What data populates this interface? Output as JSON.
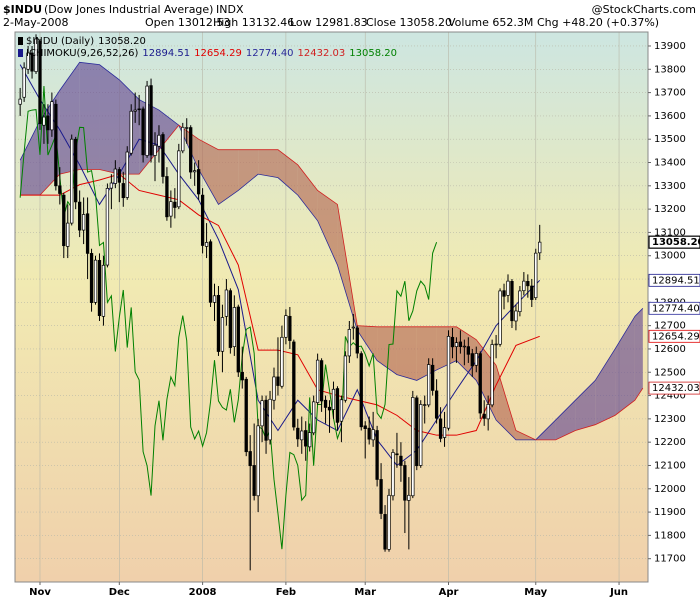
{
  "header": {
    "symbol": "$INDU",
    "name": "(Dow Jones Industrial Average)",
    "exchange": "INDX",
    "date": "2-May-2008",
    "stats": [
      "Open 13012.53",
      "High 13132.46",
      "Low 12981.83",
      "Close 13058.20",
      "Volume 652.3M",
      "Chg +48.20 (+0.37%)"
    ],
    "watermark": "@StockCharts.com"
  },
  "chart_data": {
    "type": "candlestick",
    "legend": "$INDU (Daily)",
    "indicator": "ICHIMOKU(9,26,52,26)",
    "xlim": [
      -1.3,
      158.3
    ],
    "xticks": [
      {
        "value": 5,
        "label": "Nov"
      },
      {
        "value": 25,
        "label": "Dec"
      },
      {
        "value": 46,
        "label": "2008"
      },
      {
        "value": 67,
        "label": "Feb"
      },
      {
        "value": 87,
        "label": "Mar"
      },
      {
        "value": 108,
        "label": "Apr"
      },
      {
        "value": 130,
        "label": "May"
      },
      {
        "value": 151,
        "label": "Jun"
      }
    ],
    "ylim": [
      11600,
      13960
    ],
    "yticks": [
      11700,
      11800,
      11900,
      12000,
      12100,
      12200,
      12300,
      12400,
      12500,
      12600,
      12700,
      12800,
      12900,
      13000,
      13100,
      13200,
      13300,
      13400,
      13500,
      13600,
      13700,
      13800,
      13900
    ],
    "grid": true,
    "candles": {
      "color": "#000000",
      "close_label": "13058.20",
      "lagging": {
        "color": "#008000",
        "shift": -26
      },
      "ohlc": [
        [
          13650,
          13720,
          13600,
          13672
        ],
        [
          13680,
          13830,
          13660,
          13806
        ],
        [
          13800,
          13900,
          13780,
          13870
        ],
        [
          13870,
          13900,
          13760,
          13792
        ],
        [
          13790,
          13950,
          13780,
          13930
        ],
        [
          13920,
          13930,
          13540,
          13567
        ],
        [
          13560,
          13650,
          13480,
          13595
        ],
        [
          13600,
          13650,
          13480,
          13540
        ],
        [
          13540,
          13700,
          13510,
          13661
        ],
        [
          13650,
          13670,
          13280,
          13300
        ],
        [
          13300,
          13380,
          13220,
          13267
        ],
        [
          13260,
          13270,
          12990,
          13043
        ],
        [
          13040,
          13220,
          12990,
          13140
        ],
        [
          13140,
          13520,
          13130,
          13500
        ],
        [
          13500,
          13510,
          13200,
          13231
        ],
        [
          13230,
          13280,
          13080,
          13110
        ],
        [
          13110,
          13250,
          13050,
          13177
        ],
        [
          13180,
          13250,
          12900,
          13010
        ],
        [
          13010,
          13030,
          12760,
          12799
        ],
        [
          12800,
          13000,
          12790,
          12981
        ],
        [
          12980,
          13010,
          12720,
          12743
        ],
        [
          12740,
          13000,
          12700,
          12959
        ],
        [
          12960,
          13310,
          12950,
          13289
        ],
        [
          13290,
          13350,
          13200,
          13312
        ],
        [
          13310,
          13410,
          13290,
          13372
        ],
        [
          13370,
          13380,
          13230,
          13315
        ],
        [
          13310,
          13360,
          13210,
          13249
        ],
        [
          13250,
          13470,
          13240,
          13445
        ],
        [
          13440,
          13650,
          13430,
          13620
        ],
        [
          13620,
          13700,
          13570,
          13625
        ],
        [
          13630,
          13690,
          13560,
          13627
        ],
        [
          13630,
          13640,
          13400,
          13433
        ],
        [
          13430,
          13750,
          13420,
          13728
        ],
        [
          13730,
          13760,
          13400,
          13432
        ],
        [
          13430,
          13530,
          13320,
          13474
        ],
        [
          13470,
          13560,
          13400,
          13517
        ],
        [
          13520,
          13530,
          13310,
          13340
        ],
        [
          13340,
          13380,
          13150,
          13167
        ],
        [
          13170,
          13280,
          13120,
          13232
        ],
        [
          13230,
          13290,
          13160,
          13207
        ],
        [
          13210,
          13480,
          13200,
          13450
        ],
        [
          13450,
          13570,
          13440,
          13551
        ],
        [
          13550,
          13590,
          13480,
          13550
        ],
        [
          13550,
          13560,
          13330,
          13359
        ],
        [
          13360,
          13400,
          13300,
          13365
        ],
        [
          13370,
          13410,
          13240,
          13265
        ],
        [
          13260,
          13290,
          13010,
          13044
        ],
        [
          13040,
          13140,
          12990,
          13057
        ],
        [
          13060,
          13070,
          12780,
          12800
        ],
        [
          12800,
          12880,
          12720,
          12828
        ],
        [
          12830,
          12870,
          12570,
          12589
        ],
        [
          12590,
          12790,
          12500,
          12735
        ],
        [
          12740,
          12900,
          12700,
          12853
        ],
        [
          12850,
          12860,
          12580,
          12606
        ],
        [
          12610,
          12830,
          12570,
          12778
        ],
        [
          12780,
          12790,
          12480,
          12501
        ],
        [
          12500,
          12610,
          12430,
          12467
        ],
        [
          12470,
          12480,
          12140,
          12159
        ],
        [
          12160,
          12230,
          11650,
          12099
        ],
        [
          12100,
          12280,
          11950,
          11971
        ],
        [
          11970,
          12300,
          11900,
          12270
        ],
        [
          12270,
          12400,
          12200,
          12378
        ],
        [
          12380,
          12400,
          12150,
          12208
        ],
        [
          12210,
          12420,
          12190,
          12384
        ],
        [
          12380,
          12520,
          12340,
          12480
        ],
        [
          12480,
          12650,
          12400,
          12443
        ],
        [
          12440,
          12700,
          12430,
          12650
        ],
        [
          12650,
          12770,
          12620,
          12743
        ],
        [
          12740,
          12780,
          12600,
          12636
        ],
        [
          12630,
          12640,
          12250,
          12265
        ],
        [
          12260,
          12300,
          12180,
          12214
        ],
        [
          12210,
          12310,
          12150,
          12248
        ],
        [
          12250,
          12290,
          12120,
          12183
        ],
        [
          12180,
          12280,
          12160,
          12241
        ],
        [
          12240,
          12400,
          12230,
          12373
        ],
        [
          12370,
          12580,
          12360,
          12552
        ],
        [
          12550,
          12560,
          12330,
          12377
        ],
        [
          12380,
          12400,
          12280,
          12349
        ],
        [
          12350,
          12380,
          12240,
          12338
        ],
        [
          12340,
          12460,
          12300,
          12427
        ],
        [
          12430,
          12440,
          12250,
          12285
        ],
        [
          12290,
          12400,
          12200,
          12382
        ],
        [
          12380,
          12590,
          12370,
          12570
        ],
        [
          12570,
          12720,
          12540,
          12684
        ],
        [
          12690,
          12750,
          12640,
          12694
        ],
        [
          12690,
          12700,
          12560,
          12582
        ],
        [
          12580,
          12590,
          12250,
          12266
        ],
        [
          12270,
          12290,
          12130,
          12258
        ],
        [
          12260,
          12310,
          12190,
          12213
        ],
        [
          12210,
          12330,
          12180,
          12254
        ],
        [
          12250,
          12270,
          12010,
          12040
        ],
        [
          12040,
          12110,
          11870,
          11894
        ],
        [
          11890,
          11930,
          11730,
          11741
        ],
        [
          11740,
          12000,
          11730,
          11972
        ],
        [
          11970,
          12170,
          11950,
          12156
        ],
        [
          12150,
          12240,
          12090,
          12146
        ],
        [
          12140,
          12200,
          12030,
          12100
        ],
        [
          12100,
          12120,
          11810,
          11951
        ],
        [
          11950,
          12050,
          11740,
          11972
        ],
        [
          11970,
          12420,
          11960,
          12392
        ],
        [
          12390,
          12400,
          12080,
          12099
        ],
        [
          12100,
          12380,
          12090,
          12362
        ],
        [
          12360,
          12400,
          12280,
          12361
        ],
        [
          12360,
          12560,
          12350,
          12533
        ],
        [
          12530,
          12560,
          12400,
          12422
        ],
        [
          12420,
          12470,
          12280,
          12303
        ],
        [
          12300,
          12350,
          12200,
          12216
        ],
        [
          12220,
          12330,
          12180,
          12263
        ],
        [
          12260,
          12680,
          12250,
          12654
        ],
        [
          12650,
          12690,
          12560,
          12609
        ],
        [
          12610,
          12650,
          12540,
          12627
        ],
        [
          12630,
          12680,
          12580,
          12610
        ],
        [
          12610,
          12640,
          12530,
          12612
        ],
        [
          12610,
          12650,
          12540,
          12577
        ],
        [
          12580,
          12600,
          12480,
          12527
        ],
        [
          12530,
          12610,
          12500,
          12581
        ],
        [
          12580,
          12590,
          12300,
          12325
        ],
        [
          12320,
          12380,
          12270,
          12302
        ],
        [
          12300,
          12400,
          12250,
          12362
        ],
        [
          12360,
          12640,
          12350,
          12619
        ],
        [
          12620,
          12660,
          12560,
          12621
        ],
        [
          12620,
          12860,
          12610,
          12849
        ],
        [
          12850,
          12880,
          12770,
          12826
        ],
        [
          12830,
          12920,
          12800,
          12891
        ],
        [
          12890,
          12900,
          12690,
          12721
        ],
        [
          12720,
          12790,
          12680,
          12763
        ],
        [
          12760,
          12870,
          12740,
          12849
        ],
        [
          12850,
          12930,
          12830,
          12891
        ],
        [
          12890,
          12920,
          12820,
          12871
        ],
        [
          12870,
          12900,
          12780,
          12812
        ],
        [
          12820,
          13030,
          12810,
          13011
        ],
        [
          13012.53,
          13132.46,
          12981.83,
          13058.2
        ]
      ]
    },
    "lines": [
      {
        "color": "#1a1a8c",
        "x": [
          0,
          5,
          10,
          15,
          20,
          25,
          30,
          35,
          40,
          45,
          50,
          55,
          60,
          65,
          70,
          75,
          80,
          85,
          90,
          95,
          100,
          105,
          110,
          115,
          120,
          125,
          131
        ],
        "values": [
          13820,
          13670,
          13540,
          13390,
          13220,
          13350,
          13500,
          13475,
          13350,
          13240,
          13070,
          12855,
          12380,
          12250,
          12380,
          12295,
          12250,
          12425,
          12210,
          12100,
          12165,
          12295,
          12425,
          12550,
          12700,
          12790,
          12894.51
        ]
      },
      {
        "color": "#e00000",
        "x": [
          0,
          5,
          10,
          15,
          20,
          25,
          30,
          35,
          40,
          45,
          50,
          55,
          60,
          65,
          70,
          75,
          80,
          85,
          90,
          95,
          100,
          105,
          110,
          115,
          120,
          125,
          131
        ],
        "values": [
          13260,
          13260,
          13260,
          13305,
          13325,
          13350,
          13280,
          13260,
          13240,
          13175,
          13130,
          12960,
          12595,
          12595,
          12575,
          12425,
          12400,
          12380,
          12360,
          12315,
          12250,
          12230,
          12230,
          12250,
          12445,
          12615,
          12654.29
        ]
      }
    ],
    "cloud": {
      "up_color": "#5e3f8f",
      "down_color": "#b0604e",
      "opacity": 0.6,
      "x": [
        0,
        5,
        10,
        15,
        20,
        25,
        30,
        35,
        40,
        45,
        50,
        55,
        60,
        65,
        70,
        75,
        80,
        85,
        90,
        95,
        100,
        105,
        110,
        115,
        120,
        125,
        130,
        135,
        140,
        145,
        150,
        155,
        157
      ],
      "span_a": {
        "color": "#2a2a9a",
        "value_label": "12774.40",
        "values": [
          13410,
          13580,
          13710,
          13830,
          13820,
          13755,
          13670,
          13625,
          13560,
          13370,
          13220,
          13280,
          13350,
          13335,
          13260,
          13150,
          12960,
          12680,
          12550,
          12490,
          12465,
          12510,
          12550,
          12465,
          12295,
          12210,
          12210,
          12295,
          12380,
          12465,
          12600,
          12740,
          12774.4
        ]
      },
      "span_b": {
        "color": "#d02020",
        "values": [
          13260,
          13260,
          13350,
          13370,
          13370,
          13350,
          13350,
          13455,
          13560,
          13500,
          13455,
          13455,
          13455,
          13455,
          13390,
          13280,
          13220,
          12700,
          12695,
          12695,
          12695,
          12695,
          12695,
          12640,
          12530,
          12250,
          12210,
          12210,
          12250,
          12275,
          12315,
          12380,
          12432.03
        ]
      }
    }
  }
}
